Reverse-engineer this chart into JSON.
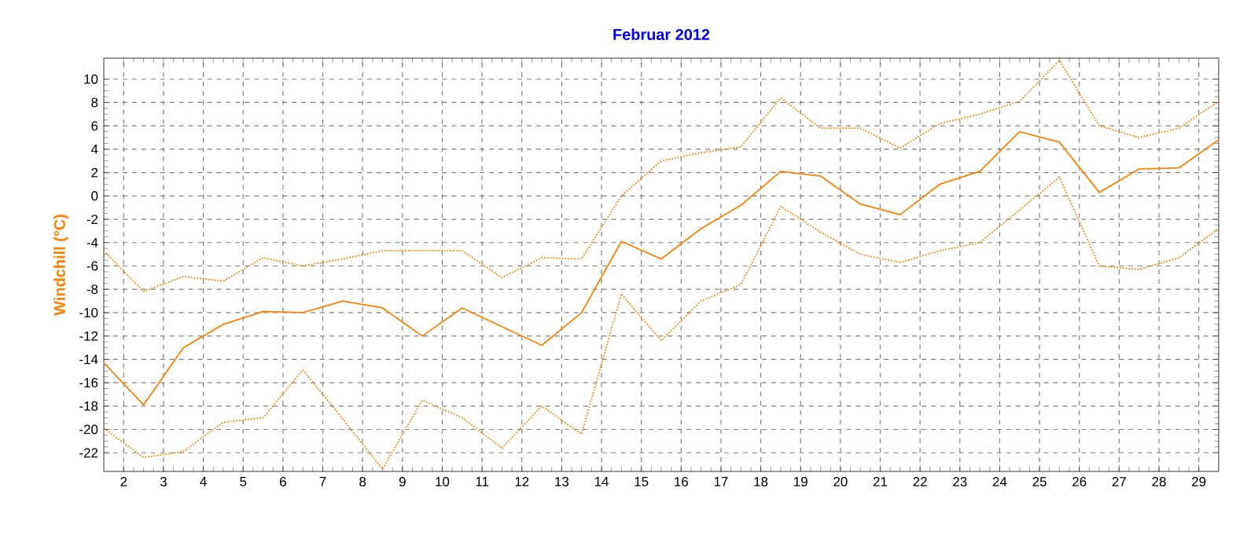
{
  "chart_data": {
    "type": "line",
    "title": "Februar 2012",
    "ylabel": "Windchill  (°C)",
    "x": [
      1.5,
      2.5,
      3.5,
      4.5,
      5.5,
      6.5,
      7.5,
      8.5,
      9.5,
      10.5,
      11.5,
      12.5,
      13.5,
      14.5,
      15.5,
      16.5,
      17.5,
      18.5,
      19.5,
      20.5,
      21.5,
      22.5,
      23.5,
      24.5,
      25.5,
      26.5,
      27.5,
      28.5,
      29.5
    ],
    "series": [
      {
        "color": "#ff8000",
        "line_style": "dotted",
        "values": [
          -4.7,
          -8.2,
          -6.9,
          -7.3,
          -5.3,
          -6.0,
          -5.4,
          -4.7,
          -4.7,
          -4.7,
          -7.0,
          -5.3,
          -5.4,
          0.0,
          3.0,
          3.7,
          4.2,
          8.4,
          5.8,
          5.8,
          4.1,
          6.2,
          7.0,
          8.1,
          11.6,
          6.0,
          5.0,
          5.8,
          8.1
        ]
      },
      {
        "color": "#ff8000",
        "line_style": "solid",
        "values": [
          -14.3,
          -17.9,
          -13.0,
          -11.0,
          -9.9,
          -10.0,
          -9.0,
          -9.6,
          -12.0,
          -9.6,
          -11.2,
          -12.8,
          -10.0,
          -3.9,
          -5.4,
          -2.8,
          -0.8,
          2.1,
          1.7,
          -0.7,
          -1.6,
          1.0,
          2.1,
          5.5,
          4.6,
          0.3,
          2.3,
          2.4,
          4.8
        ]
      },
      {
        "color": "#ff8000",
        "line_style": "dotted",
        "values": [
          -19.9,
          -22.4,
          -21.9,
          -19.4,
          -19.0,
          -14.9,
          -19.1,
          -23.4,
          -17.5,
          -19.0,
          -21.6,
          -18.0,
          -20.4,
          -8.4,
          -12.4,
          -9.0,
          -7.6,
          -0.9,
          -3.1,
          -5.0,
          -5.7,
          -4.7,
          -4.0,
          -1.2,
          1.6,
          -6.0,
          -6.3,
          -5.3,
          -2.8
        ]
      }
    ],
    "xlim": [
      1.5,
      29.5
    ],
    "ylim": [
      -23.6,
      11.8
    ],
    "xticks": [
      2,
      3,
      4,
      5,
      6,
      7,
      8,
      9,
      10,
      11,
      12,
      13,
      14,
      15,
      16,
      17,
      18,
      19,
      20,
      21,
      22,
      23,
      24,
      25,
      26,
      27,
      28,
      29
    ],
    "yticks": [
      -22,
      -20,
      -18,
      -16,
      -14,
      -12,
      -10,
      -8,
      -6,
      -4,
      -2,
      0,
      2,
      4,
      6,
      8,
      10
    ],
    "grid": true
  }
}
